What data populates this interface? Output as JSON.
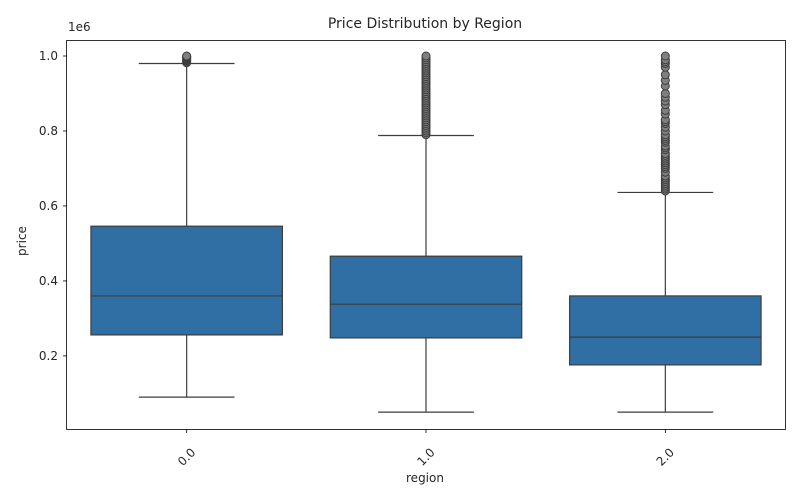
{
  "colors": {
    "box_fill": "#2f6fa3",
    "line": "#3d3d3d",
    "outlier_edge": "#3d3d3d"
  },
  "chart_data": {
    "type": "box",
    "title": "Price Distribution by Region",
    "xlabel": "region",
    "ylabel": "price",
    "y_offset_label": "1e6",
    "ylim": [
      0.005,
      1.04
    ],
    "yticks": [
      0.2,
      0.4,
      0.6,
      0.8,
      1.0
    ],
    "ytick_labels": [
      "0.2",
      "0.4",
      "0.6",
      "0.8",
      "1.0"
    ],
    "categories": [
      "0.0",
      "1.0",
      "2.0"
    ],
    "boxes": [
      {
        "category": "0.0",
        "whisker_low": 0.09,
        "q1": 0.256,
        "median": 0.36,
        "q3": 0.546,
        "whisker_high": 0.98,
        "outliers": [
          0.982,
          0.985,
          0.988,
          0.99,
          0.992,
          0.994,
          0.996,
          0.997,
          0.998,
          0.999,
          1.0
        ]
      },
      {
        "category": "1.0",
        "whisker_low": 0.05,
        "q1": 0.248,
        "median": 0.338,
        "q3": 0.466,
        "whisker_high": 0.788,
        "outliers": [
          0.79,
          0.795,
          0.8,
          0.805,
          0.81,
          0.815,
          0.82,
          0.825,
          0.83,
          0.835,
          0.84,
          0.845,
          0.85,
          0.855,
          0.86,
          0.865,
          0.87,
          0.875,
          0.88,
          0.885,
          0.89,
          0.895,
          0.9,
          0.905,
          0.91,
          0.915,
          0.92,
          0.925,
          0.93,
          0.935,
          0.94,
          0.945,
          0.95,
          0.955,
          0.96,
          0.965,
          0.97,
          0.975,
          0.98,
          0.985,
          0.99,
          0.995,
          1.0
        ]
      },
      {
        "category": "2.0",
        "whisker_low": 0.05,
        "q1": 0.176,
        "median": 0.25,
        "q3": 0.36,
        "whisker_high": 0.636,
        "outliers": [
          0.64,
          0.645,
          0.65,
          0.655,
          0.66,
          0.665,
          0.67,
          0.675,
          0.68,
          0.69,
          0.7,
          0.705,
          0.71,
          0.715,
          0.72,
          0.725,
          0.73,
          0.735,
          0.74,
          0.75,
          0.755,
          0.76,
          0.77,
          0.775,
          0.78,
          0.785,
          0.79,
          0.8,
          0.81,
          0.82,
          0.825,
          0.83,
          0.845,
          0.855,
          0.87,
          0.88,
          0.89,
          0.9,
          0.92,
          0.935,
          0.95,
          0.97,
          0.98,
          0.985,
          0.99,
          1.0
        ]
      }
    ]
  }
}
